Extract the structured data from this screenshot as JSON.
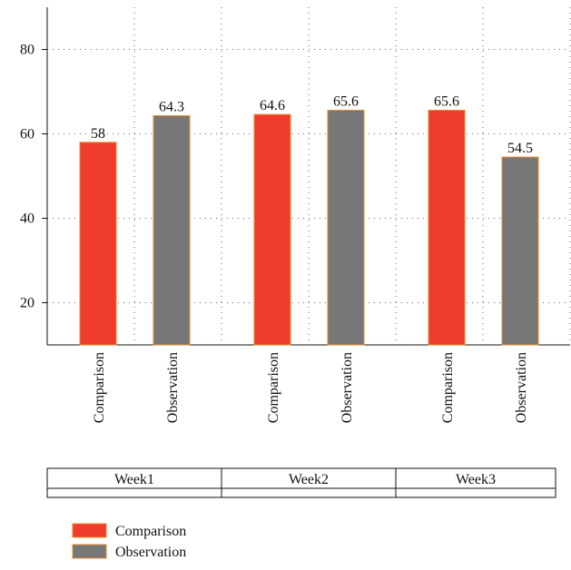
{
  "chart_data": {
    "type": "bar",
    "categories": [
      "Week1",
      "Week2",
      "Week3"
    ],
    "series": [
      {
        "name": "Comparison",
        "color": "#f03c2e",
        "values": [
          58,
          64.6,
          65.6
        ]
      },
      {
        "name": "Observation",
        "color": "#777777",
        "values": [
          64.3,
          65.6,
          54.5
        ]
      }
    ],
    "ylim": [
      10,
      90
    ],
    "yticks": [
      20,
      40,
      60,
      80
    ],
    "grid": true
  }
}
